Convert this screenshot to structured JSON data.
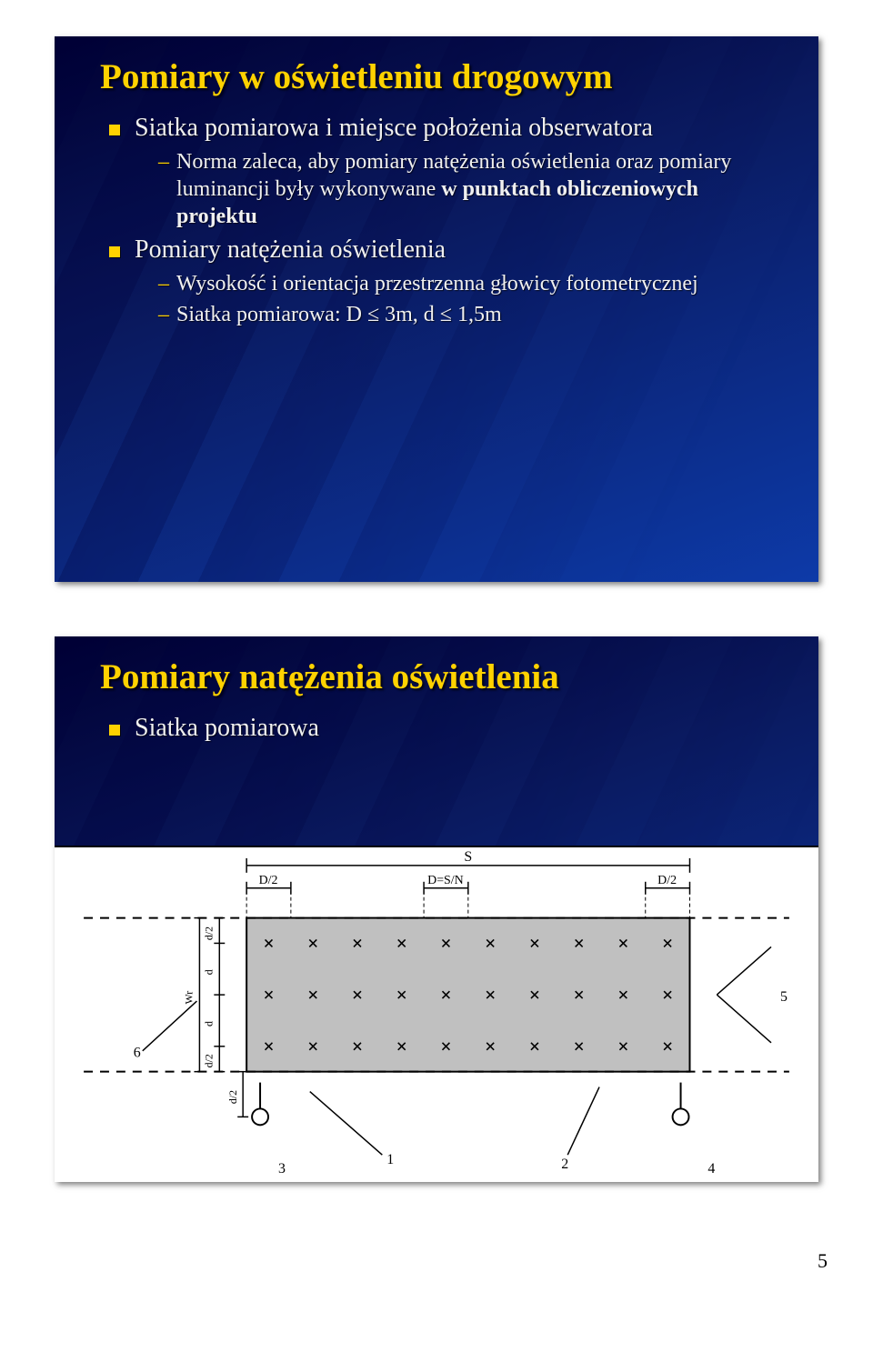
{
  "page_number": "5",
  "colors": {
    "slide_bg_from": "#000033",
    "slide_bg_mid": "#0a1a60",
    "slide_bg_to": "#0d3aa8",
    "title_color": "#ffd200",
    "bullet_color": "#ffd200",
    "body_text": "#f0f0f0",
    "figure_bg": "#ffffff",
    "figure_grey": "#c0c0c0"
  },
  "slide1": {
    "title": "Pomiary w oświetleniu drogowym",
    "b1": "Siatka pomiarowa i miejsce położenia obserwatora",
    "b1_sub1_a": "Norma zaleca, aby pomiary natężenia oświetlenia oraz pomiary luminancji były wykonywane ",
    "b1_sub1_b": "w punktach obliczeniowych projektu",
    "b2": "Pomiary natężenia oświetlenia",
    "b2_sub1": "Wysokość i orientacja przestrzenna głowicy fotometrycznej",
    "b2_sub2": "Siatka pomiarowa: D ≤ 3m, d ≤ 1,5m"
  },
  "slide2": {
    "title": "Pomiary natężenia oświetlenia",
    "b1": "Siatka pomiarowa",
    "figure": {
      "type": "engineering-diagram",
      "top_label_center": "S",
      "top_label_left": "D/2",
      "top_label_mid": "D=S/N",
      "top_label_right": "D/2",
      "left_labels_top_to_bottom": [
        "d/2",
        "d",
        "Wr",
        "d",
        "d/2"
      ],
      "bottom_offset_label": "d/2",
      "callout_numbers": [
        "1",
        "2",
        "3",
        "4",
        "5",
        "6"
      ],
      "grid": {
        "cols": 10,
        "rows": 3
      },
      "grey_fill": "#c0c0c0",
      "stroke": "#000000",
      "stroke_width": 2,
      "dash": "8 6",
      "cross_size": 8,
      "light_symbol_radius": 9
    }
  }
}
